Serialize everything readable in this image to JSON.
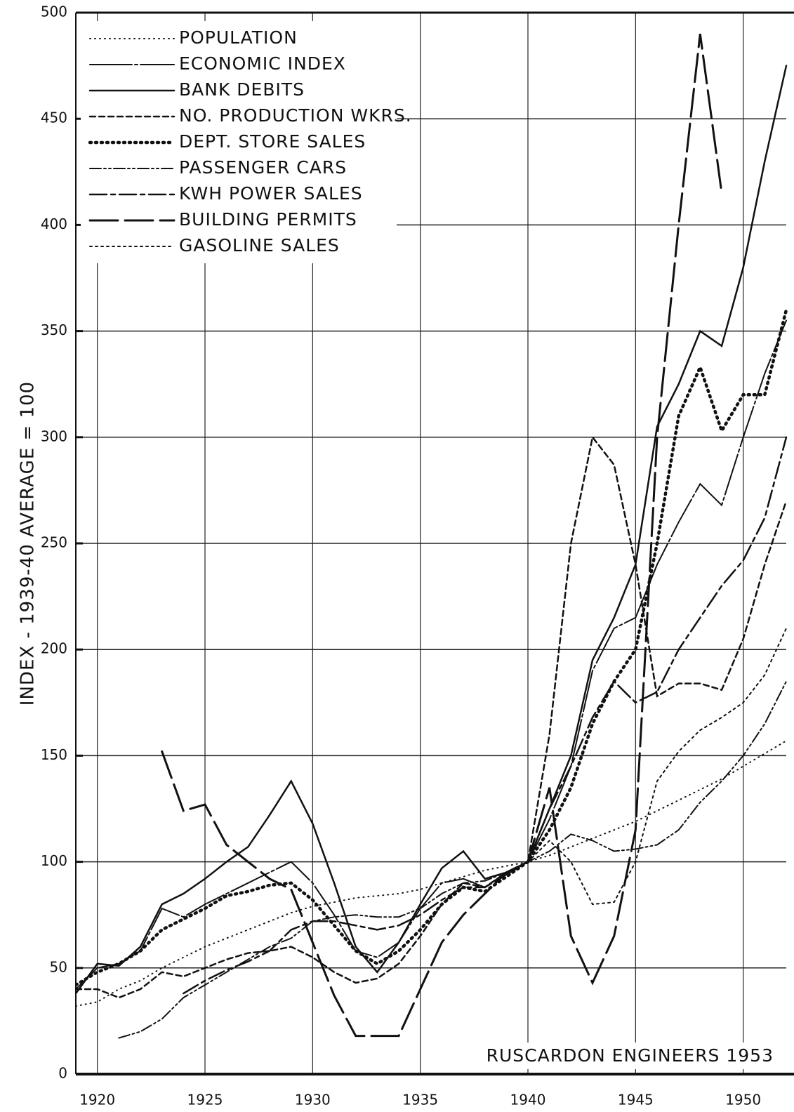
{
  "chart_data": {
    "type": "line",
    "y_label": "INDEX - 1939-40 AVERAGE = 100",
    "annotation": "RUSCARDON ENGINEERS 1953",
    "x": [
      1919,
      1920,
      1921,
      1922,
      1923,
      1924,
      1925,
      1926,
      1927,
      1928,
      1929,
      1930,
      1931,
      1932,
      1933,
      1934,
      1935,
      1936,
      1937,
      1938,
      1939,
      1940,
      1941,
      1942,
      1943,
      1944,
      1945,
      1946,
      1947,
      1948,
      1949,
      1950,
      1951,
      1952
    ],
    "xlim": [
      1919,
      1952
    ],
    "xticks": [
      1920,
      1925,
      1930,
      1935,
      1940,
      1945,
      1950
    ],
    "ylim": [
      0,
      500
    ],
    "yticks": [
      0,
      50,
      100,
      150,
      200,
      250,
      300,
      350,
      400,
      450,
      500
    ],
    "grid": true,
    "legend": "upper left",
    "series": [
      {
        "name": "POPULATION",
        "color": "#111",
        "dash": "1 6",
        "width": 2,
        "values": [
          32,
          34,
          40,
          44,
          50,
          55,
          60,
          64,
          68,
          72,
          76,
          79,
          81,
          83,
          84,
          85,
          87,
          90,
          93,
          96,
          98,
          100,
          103,
          107,
          111,
          115,
          119,
          124,
          129,
          134,
          139,
          145,
          151,
          157
        ]
      },
      {
        "name": "ECONOMIC INDEX",
        "color": "#111",
        "dash": "60 4 4 4",
        "width": 2,
        "values": [
          40,
          50,
          52,
          58,
          78,
          74,
          80,
          85,
          90,
          95,
          100,
          90,
          75,
          58,
          55,
          62,
          78,
          90,
          92,
          88,
          95,
          100,
          120,
          145,
          190,
          210,
          215,
          240,
          260,
          278,
          268,
          300,
          330,
          355
        ]
      },
      {
        "name": "BANK DEBITS",
        "color": "#111",
        "dash": "none",
        "width": 2.5,
        "values": [
          38,
          52,
          51,
          60,
          80,
          85,
          92,
          100,
          107,
          122,
          138,
          118,
          90,
          60,
          48,
          62,
          80,
          97,
          105,
          92,
          95,
          100,
          125,
          150,
          195,
          215,
          240,
          305,
          325,
          350,
          343,
          380,
          430,
          475
        ]
      },
      {
        "name": "NO. PRODUCTION WKRS.",
        "color": "#111",
        "dash": "8 5",
        "width": 2.5,
        "values": [
          40,
          40,
          36,
          40,
          48,
          46,
          50,
          54,
          57,
          58,
          60,
          55,
          48,
          43,
          45,
          52,
          65,
          80,
          90,
          88,
          95,
          100,
          160,
          250,
          300,
          287,
          240,
          178,
          184,
          184,
          181,
          205,
          240,
          270
        ]
      },
      {
        "name": "DEPT. STORE SALES",
        "color": "#111",
        "dash": "2 6",
        "width": 4.5,
        "values": [
          42,
          48,
          52,
          58,
          68,
          73,
          78,
          84,
          86,
          89,
          90,
          82,
          70,
          58,
          52,
          58,
          68,
          80,
          88,
          86,
          93,
          100,
          115,
          135,
          165,
          185,
          200,
          250,
          310,
          333,
          303,
          320,
          320,
          360
        ]
      },
      {
        "name": "PASSENGER CARS",
        "color": "#111",
        "dash": "16 4 3 4 3 4",
        "width": 2,
        "values": [
          null,
          null,
          17,
          20,
          26,
          36,
          42,
          48,
          54,
          60,
          64,
          72,
          74,
          75,
          74,
          74,
          78,
          85,
          90,
          91,
          95,
          100,
          105,
          113,
          110,
          105,
          106,
          108,
          115,
          128,
          138,
          150,
          165,
          185
        ]
      },
      {
        "name": "KWH POWER SALES",
        "color": "#111",
        "dash": "24 6 6 6",
        "width": 2.5,
        "values": [
          null,
          null,
          null,
          null,
          null,
          38,
          44,
          49,
          53,
          58,
          68,
          72,
          72,
          70,
          68,
          70,
          75,
          82,
          88,
          88,
          94,
          100,
          125,
          145,
          168,
          185,
          175,
          180,
          200,
          215,
          230,
          242,
          262,
          300
        ]
      },
      {
        "name": "BUILDING PERMITS",
        "color": "#111",
        "dash": "40 10",
        "width": 3,
        "values": [
          null,
          null,
          null,
          null,
          152,
          124,
          127,
          108,
          100,
          92,
          87,
          62,
          37,
          18,
          18,
          18,
          40,
          62,
          75,
          85,
          95,
          100,
          135,
          65,
          43,
          65,
          115,
          300,
          400,
          490,
          415,
          null,
          null,
          null
        ]
      },
      {
        "name": "GASOLINE SALES",
        "color": "#111",
        "dash": "3 5",
        "width": 2,
        "values": [
          null,
          null,
          null,
          null,
          null,
          null,
          null,
          null,
          null,
          null,
          null,
          null,
          null,
          null,
          null,
          null,
          null,
          null,
          null,
          null,
          null,
          100,
          110,
          100,
          80,
          81,
          100,
          138,
          152,
          162,
          168,
          175,
          188,
          210
        ]
      }
    ]
  }
}
